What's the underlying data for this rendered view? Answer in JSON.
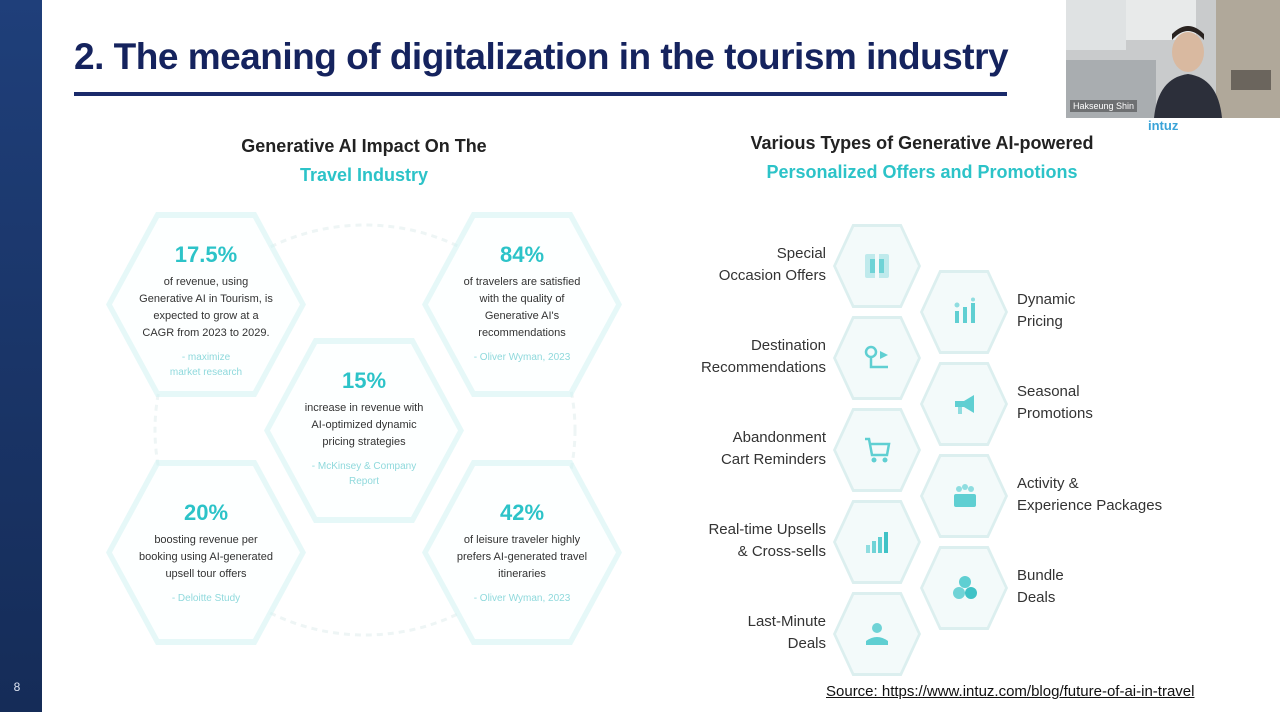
{
  "slide": {
    "title": "2. The meaning of digitalization in the tourism industry",
    "page_number": "8",
    "source": "Source: https://www.intuz.com/blog/future-of-ai-in-travel",
    "brand": "intuz"
  },
  "left_panel": {
    "heading_line1": "Generative AI Impact On The",
    "heading_line2": "Travel Industry",
    "stats": [
      {
        "value": "17.5%",
        "desc": [
          "of revenue, using",
          "Generative AI in Tourism, is",
          "expected to grow at a",
          "CAGR from 2023 to 2029."
        ],
        "source": [
          "- maximize",
          "market research"
        ]
      },
      {
        "value": "84%",
        "desc": [
          "of travelers are satisfied",
          "with the quality of",
          "Generative AI's",
          "recommendations"
        ],
        "source": [
          "- Oliver Wyman, 2023"
        ]
      },
      {
        "value": "15%",
        "desc": [
          "increase in revenue with",
          "AI-optimized dynamic",
          "pricing strategies"
        ],
        "source": [
          "- McKinsey & Company",
          "Report"
        ]
      },
      {
        "value": "20%",
        "desc": [
          "boosting revenue per",
          "booking using AI-generated",
          "upsell tour offers"
        ],
        "source": [
          "- Deloitte Study"
        ]
      },
      {
        "value": "42%",
        "desc": [
          "of leisure traveler highly",
          "prefers AI-generated travel",
          "itineraries"
        ],
        "source": [
          "- Oliver Wyman, 2023"
        ]
      }
    ]
  },
  "right_panel": {
    "heading_line1": "Various Types of Generative AI-powered",
    "heading_line2": "Personalized Offers and Promotions",
    "left_items": [
      {
        "line1": "Special",
        "line2": "Occasion Offers",
        "icon": "gift-box-icon"
      },
      {
        "line1": "Destination",
        "line2": "Recommendations",
        "icon": "map-pin-icon"
      },
      {
        "line1": "Abandonment",
        "line2": "Cart Reminders",
        "icon": "cart-icon"
      },
      {
        "line1": "Real-time Upsells",
        "line2": "& Cross-sells",
        "icon": "bar-chart-icon"
      },
      {
        "line1": "Last-Minute",
        "line2": "Deals",
        "icon": "handshake-icon"
      }
    ],
    "right_items": [
      {
        "line1": "Dynamic",
        "line2": "Pricing",
        "icon": "pricing-chart-icon"
      },
      {
        "line1": "Seasonal",
        "line2": "Promotions",
        "icon": "megaphone-icon"
      },
      {
        "line1": "Activity &",
        "line2": "Experience Packages",
        "icon": "package-icon"
      },
      {
        "line1": "Bundle",
        "line2": "Deals",
        "icon": "bundle-icon"
      }
    ]
  },
  "webcam": {
    "name": "Hakseung Shin"
  },
  "colors": {
    "title": "#15235e",
    "accent_teal": "#2cc3c8",
    "left_bar": "#1f3f7a"
  }
}
